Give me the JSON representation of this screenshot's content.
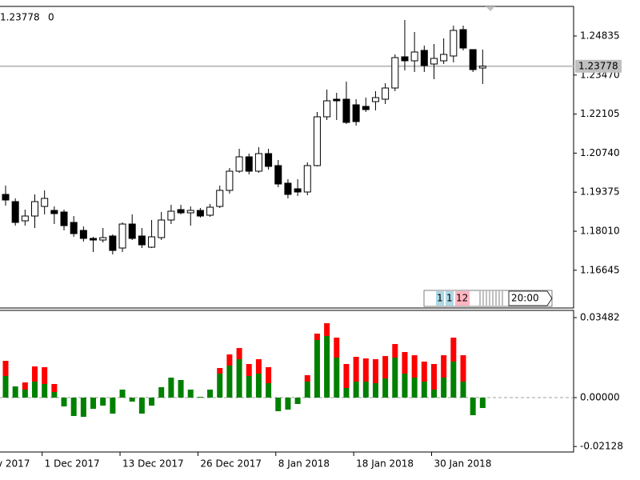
{
  "chart_data": [
    {
      "type": "candlestick",
      "open": [
        1.19297,
        1.19045,
        1.18373,
        1.18541,
        1.18877,
        1.18737,
        1.18681,
        1.18317,
        1.18038,
        1.17758,
        1.17702,
        1.17842,
        1.17422,
        1.18261,
        1.17842,
        1.1745,
        1.17786,
        1.18401,
        1.18765,
        1.18653,
        1.18737,
        1.18569,
        1.18877,
        1.19437,
        1.20108,
        1.20611,
        1.20108,
        1.20723,
        1.20304,
        1.19689,
        1.19493,
        1.19381,
        1.20304,
        1.2201,
        1.22625,
        1.22625,
        1.2243,
        1.22374,
        1.22541,
        1.22625,
        1.23017,
        1.24108,
        1.23968,
        1.24332,
        1.23856,
        1.23968,
        1.24136,
        1.25059,
        1.2436,
        1.23716
      ],
      "high": [
        1.19605,
        1.19157,
        1.18765,
        1.19297,
        1.19437,
        1.18877,
        1.18765,
        1.18541,
        1.18177,
        1.17814,
        1.18121,
        1.17898,
        1.18317,
        1.18597,
        1.18121,
        1.18401,
        1.18681,
        1.18933,
        1.18933,
        1.18877,
        1.18821,
        1.18961,
        1.19605,
        1.2022,
        1.20891,
        1.20723,
        1.20947,
        1.20891,
        1.205,
        1.19829,
        1.19829,
        1.20416,
        1.22178,
        1.22961,
        1.22849,
        1.23241,
        1.22625,
        1.22681,
        1.22905,
        1.23185,
        1.24192,
        1.25394,
        1.24975,
        1.24499,
        1.24555,
        1.24751,
        1.25199,
        1.25199,
        1.2436,
        1.2436
      ],
      "low": [
        1.18905,
        1.18205,
        1.18205,
        1.18121,
        1.18597,
        1.18261,
        1.18038,
        1.17814,
        1.17646,
        1.17282,
        1.17618,
        1.17199,
        1.17282,
        1.17702,
        1.17422,
        1.17422,
        1.17702,
        1.18261,
        1.18597,
        1.18205,
        1.18485,
        1.18513,
        1.18821,
        1.19325,
        1.20052,
        1.19996,
        1.20052,
        1.20164,
        1.19549,
        1.19157,
        1.19241,
        1.19269,
        1.20276,
        1.21898,
        1.21898,
        1.21758,
        1.21702,
        1.22178,
        1.22234,
        1.22457,
        1.22905,
        1.23632,
        1.23576,
        1.23576,
        1.23325,
        1.23856,
        1.23912,
        1.24332,
        1.23576,
        1.23157
      ],
      "close": [
        1.19101,
        1.18317,
        1.18541,
        1.19045,
        1.19157,
        1.18625,
        1.18205,
        1.17926,
        1.17758,
        1.17702,
        1.17786,
        1.17338,
        1.18261,
        1.17758,
        1.17534,
        1.17814,
        1.18401,
        1.18709,
        1.18653,
        1.18737,
        1.18541,
        1.18849,
        1.19437,
        1.20108,
        1.20611,
        1.20108,
        1.20723,
        1.20276,
        1.19661,
        1.19297,
        1.19381,
        1.20304,
        1.2201,
        1.22569,
        1.22569,
        1.21814,
        1.21842,
        1.22262,
        1.22681,
        1.23017,
        1.2408,
        1.23968,
        1.24276,
        1.238,
        1.24052,
        1.24192,
        1.25031,
        1.24415,
        1.2366,
        1.23778
      ],
      "up_color": "#ffffff",
      "down_color": "#000000",
      "ylim": [
        1.15325,
        1.2587
      ],
      "yticks": [
        1.24835,
        {
          "value": 1.2347,
          "label": "1.23470"
        },
        1.22105,
        {
          "value": 1.2074,
          "label": "1.20740"
        },
        1.19375,
        {
          "value": 1.1801,
          "label": "1.18010"
        },
        1.16645
      ],
      "current_price": 1.23778,
      "spread": 0,
      "period_buttons": [
        "1",
        "1",
        "12"
      ],
      "time_label": "20:00"
    },
    {
      "type": "histogram",
      "series": [
        {
          "color": "#008000",
          "values": [
            0.0094,
            0.00487,
            0.00348,
            0.00696,
            0.00592,
            0.00244,
            -0.00383,
            -0.008,
            -0.00835,
            -0.00487,
            -0.00348,
            -0.00696,
            0.00348,
            -0.00174,
            -0.00696,
            -0.00348,
            0.00452,
            0.0087,
            0.00766,
            0.00348,
            0.00035,
            0.00348,
            0.01044,
            0.01392,
            0.0167,
            0.0094,
            0.01044,
            0.00627,
            -0.00592,
            -0.00522,
            -0.00279,
            0.00696,
            0.02506,
            0.0268,
            0.0174,
            0.00418,
            0.00696,
            0.00696,
            0.00627,
            0.00835,
            0.0174,
            0.01044,
            0.0087,
            0.00696,
            0.00348,
            0.0087,
            0.01566,
            0.00696,
            -0.00766,
            -0.00452
          ]
        },
        {
          "color": "#ff0000",
          "values": [
            0.00661,
            0,
            0.00313,
            0.00661,
            0.00731,
            0.00348,
            0,
            0,
            0,
            0,
            0,
            0,
            0,
            0,
            0,
            0,
            0,
            0,
            0,
            0,
            0,
            0,
            0.00244,
            0.00487,
            0.00487,
            0.00522,
            0.00627,
            0.00696,
            0,
            0,
            0,
            0.00279,
            0.00279,
            0.00557,
            0.0087,
            0.01044,
            0.01079,
            0.01009,
            0.01044,
            0.00974,
            0.00592,
            0.0094,
            0.00974,
            0.0087,
            0.01114,
            0.00974,
            0.01044,
            0.01148,
            0,
            0
          ]
        }
      ],
      "categories": [
        null,
        null,
        null,
        null,
        "1 Dec 2017",
        null,
        null,
        null,
        null,
        null,
        null,
        null,
        "13 Dec 2017",
        null,
        null,
        null,
        null,
        null,
        null,
        null,
        "26 Dec 2017",
        null,
        null,
        null,
        null,
        null,
        null,
        null,
        "8 Jan 2018",
        null,
        null,
        null,
        null,
        null,
        null,
        null,
        "18 Jan 2018",
        null,
        null,
        null,
        null,
        null,
        null,
        null,
        "30 Jan 2018",
        null,
        null,
        null,
        null,
        null
      ],
      "edge_label": "v 2017",
      "ylim": [
        -0.02367,
        0.03795
      ],
      "yticks": [
        {
          "value": 0.03482,
          "label": "0.03482"
        },
        {
          "value": 0,
          "label": "0.00000"
        },
        {
          "value": -0.02128,
          "label": "-0.02128"
        }
      ]
    }
  ]
}
